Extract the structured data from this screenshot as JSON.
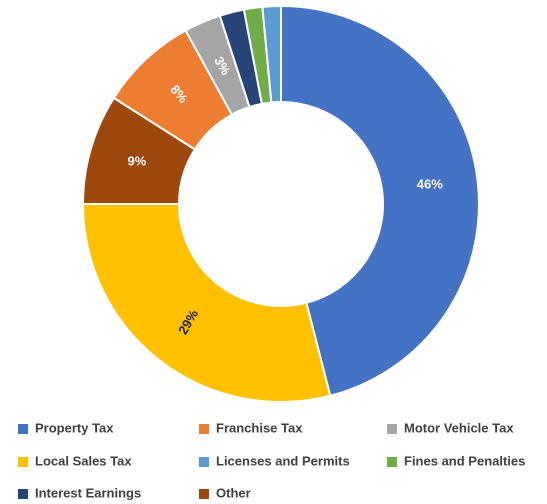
{
  "chart_data": {
    "type": "donut",
    "categories": [
      "Property Tax",
      "Local Sales Tax",
      "Other",
      "Franchise Tax",
      "Motor Vehicle Tax",
      "Interest Earnings",
      "Fines and Penalties",
      "Licenses and Permits"
    ],
    "values": [
      46,
      29,
      9,
      8,
      3,
      2,
      1.5,
      1.5
    ],
    "value_labels": [
      "46%",
      "29%",
      "9%",
      "8%",
      "3%",
      null,
      null,
      null
    ],
    "colors": [
      "#4472c4",
      "#ffc000",
      "#9e480e",
      "#ed7d31",
      "#a5a5a5",
      "#264478",
      "#70ad47",
      "#5b9bd5"
    ],
    "legend": "bottom"
  }
}
